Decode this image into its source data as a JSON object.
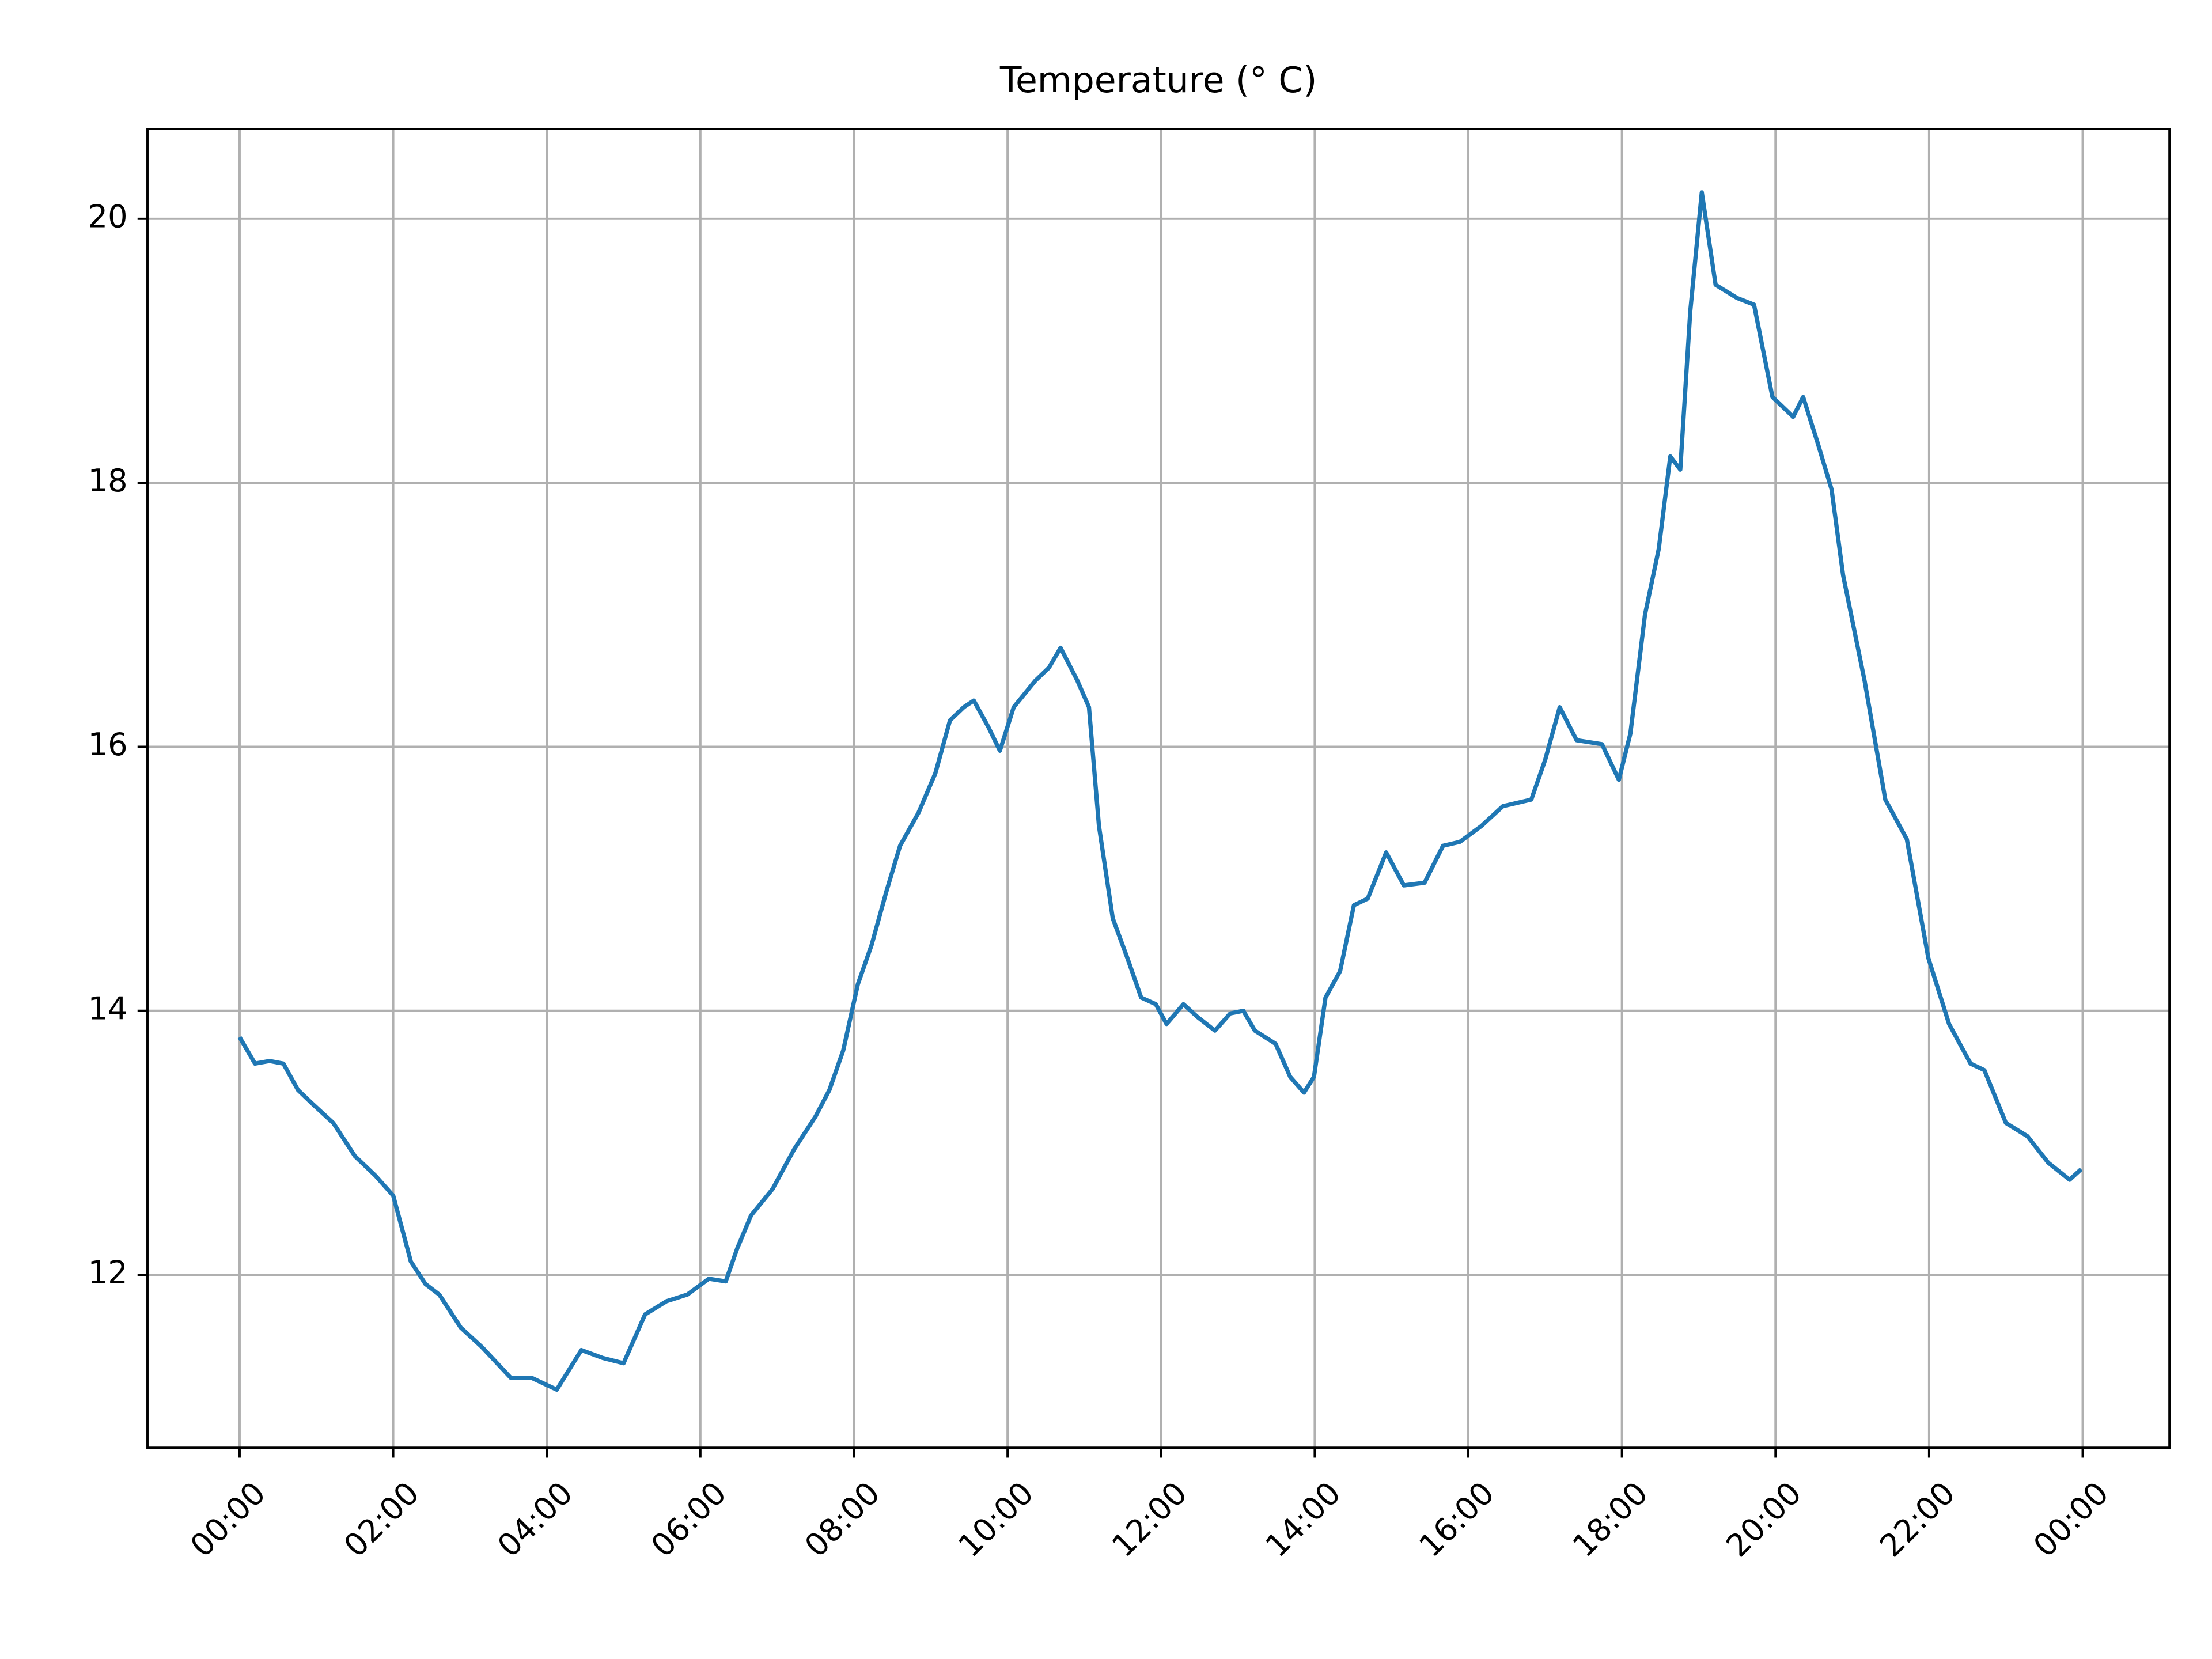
{
  "chart_data": {
    "type": "line",
    "title": "Temperature (° C)",
    "x": [
      0,
      0.2,
      0.39,
      0.57,
      0.76,
      0.94,
      1.22,
      1.5,
      1.77,
      2.0,
      2.23,
      2.42,
      2.6,
      2.88,
      3.16,
      3.53,
      3.8,
      4.13,
      4.45,
      4.73,
      5.0,
      5.28,
      5.56,
      5.83,
      6.11,
      6.33,
      6.48,
      6.66,
      6.94,
      7.22,
      7.5,
      7.68,
      7.86,
      8.05,
      8.23,
      8.42,
      8.6,
      8.84,
      9.06,
      9.25,
      9.43,
      9.56,
      9.75,
      9.9,
      10.08,
      10.36,
      10.54,
      10.69,
      10.91,
      11.06,
      11.19,
      11.37,
      11.56,
      11.74,
      11.93,
      12.07,
      12.29,
      12.48,
      12.7,
      12.9,
      13.07,
      13.22,
      13.49,
      13.68,
      13.86,
      13.99,
      14.14,
      14.33,
      14.51,
      14.69,
      14.93,
      15.16,
      15.43,
      15.67,
      15.89,
      16.17,
      16.45,
      16.82,
      17.0,
      17.19,
      17.41,
      17.74,
      17.96,
      18.11,
      18.3,
      18.48,
      18.63,
      18.76,
      18.89,
      19.04,
      19.22,
      19.5,
      19.72,
      19.96,
      20.23,
      20.36,
      20.55,
      20.73,
      20.88,
      21.16,
      21.43,
      21.71,
      21.99,
      22.26,
      22.54,
      22.72,
      23.0,
      23.28,
      23.55,
      23.83,
      23.98
    ],
    "series": [
      {
        "name": "Temperature",
        "color": "#1f77b4",
        "values": [
          13.8,
          13.6,
          13.62,
          13.6,
          13.4,
          13.3,
          13.15,
          12.9,
          12.75,
          12.6,
          12.1,
          11.93,
          11.85,
          11.6,
          11.45,
          11.22,
          11.22,
          11.13,
          11.43,
          11.37,
          11.33,
          11.7,
          11.8,
          11.85,
          11.97,
          11.95,
          12.2,
          12.45,
          12.65,
          12.95,
          13.2,
          13.4,
          13.7,
          14.2,
          14.5,
          14.9,
          15.25,
          15.5,
          15.8,
          16.2,
          16.3,
          16.35,
          16.15,
          15.97,
          16.3,
          16.5,
          16.6,
          16.75,
          16.5,
          16.3,
          15.4,
          14.7,
          14.4,
          14.1,
          14.05,
          13.9,
          14.05,
          13.95,
          13.85,
          13.98,
          14.0,
          13.85,
          13.75,
          13.5,
          13.38,
          13.5,
          14.1,
          14.3,
          14.8,
          14.85,
          15.2,
          14.95,
          14.97,
          15.25,
          15.28,
          15.4,
          15.55,
          15.6,
          15.9,
          16.3,
          16.05,
          16.02,
          15.75,
          16.1,
          17.0,
          17.5,
          18.2,
          18.1,
          19.3,
          20.2,
          19.5,
          19.4,
          19.35,
          18.65,
          18.5,
          18.65,
          18.3,
          17.95,
          17.3,
          16.5,
          15.6,
          15.3,
          14.4,
          13.9,
          13.6,
          13.55,
          13.15,
          13.05,
          12.85,
          12.72,
          12.8
        ]
      }
    ],
    "xlim": [
      -1.2,
      25.13
    ],
    "ylim": [
      10.69,
      20.68
    ],
    "xticks": [
      {
        "value": 0,
        "label": "00:00"
      },
      {
        "value": 2,
        "label": "02:00"
      },
      {
        "value": 4,
        "label": "04:00"
      },
      {
        "value": 6,
        "label": "06:00"
      },
      {
        "value": 8,
        "label": "08:00"
      },
      {
        "value": 10,
        "label": "10:00"
      },
      {
        "value": 12,
        "label": "12:00"
      },
      {
        "value": 14,
        "label": "14:00"
      },
      {
        "value": 16,
        "label": "16:00"
      },
      {
        "value": 18,
        "label": "18:00"
      },
      {
        "value": 20,
        "label": "20:00"
      },
      {
        "value": 22,
        "label": "22:00"
      },
      {
        "value": 24,
        "label": "00:00"
      }
    ],
    "yticks": [
      12,
      14,
      16,
      18,
      20
    ],
    "grid": true
  }
}
